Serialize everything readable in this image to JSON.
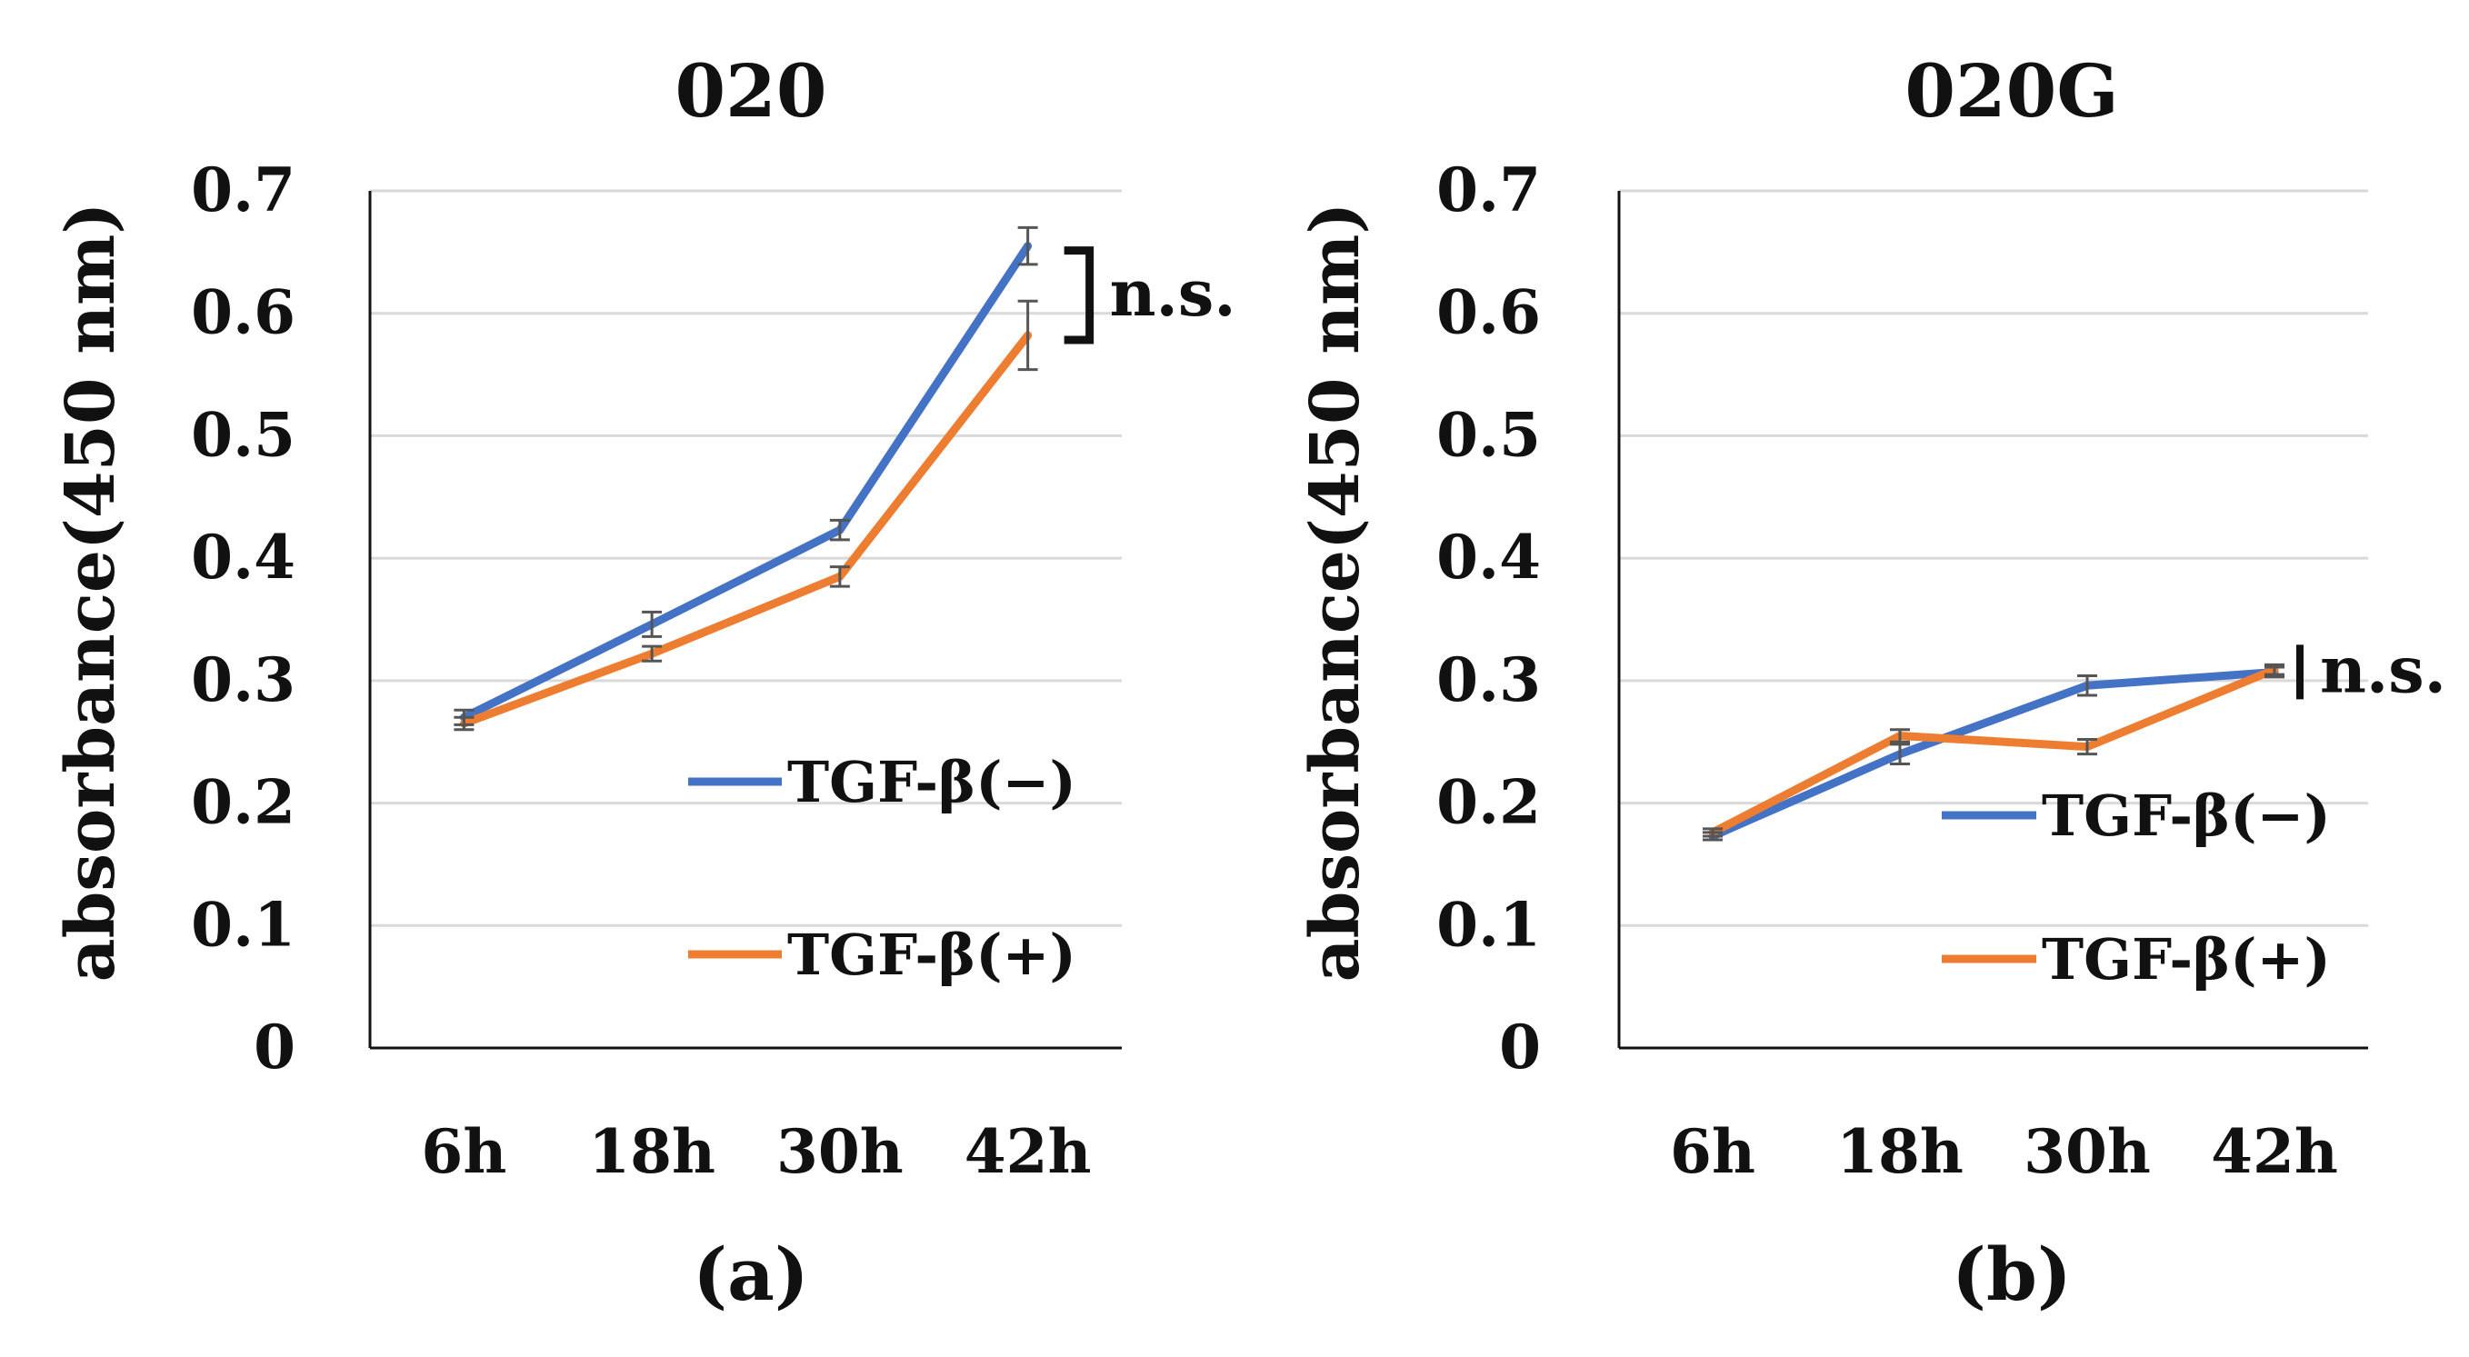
{
  "colors": {
    "tgf_minus": "#4472C4",
    "tgf_plus": "#ED7D31",
    "grid": "#D9D9D9",
    "axis": "#111111",
    "error_bar": "#555555"
  },
  "chart_data": [
    {
      "type": "line",
      "title": "020",
      "panel_label": "(a)",
      "ylabel": "absorbance(450 nm)",
      "xlabel": "",
      "categories": [
        "6h",
        "18h",
        "30h",
        "42h"
      ],
      "ylim": [
        0,
        0.7
      ],
      "yticks": [
        "0",
        "0.1",
        "0.2",
        "0.3",
        "0.4",
        "0.5",
        "0.6",
        "0.7"
      ],
      "grid": true,
      "legend_position": "right-middle",
      "series": [
        {
          "name": "TGF-β(−)",
          "values": [
            0.27,
            0.346,
            0.423,
            0.655
          ],
          "errors": [
            0.006,
            0.01,
            0.008,
            0.015
          ],
          "color": "#4472C4"
        },
        {
          "name": "TGF-β(+)",
          "values": [
            0.265,
            0.322,
            0.385,
            0.582
          ],
          "errors": [
            0.005,
            0.006,
            0.008,
            0.028
          ],
          "color": "#ED7D31"
        }
      ],
      "annotation": {
        "text": "n.s.",
        "style": "bracket",
        "at": "42h"
      }
    },
    {
      "type": "line",
      "title": "020G",
      "panel_label": "(b)",
      "ylabel": "absorbance(450 nm)",
      "xlabel": "",
      "categories": [
        "6h",
        "18h",
        "30h",
        "42h"
      ],
      "ylim": [
        0,
        0.7
      ],
      "yticks": [
        "0",
        "0.1",
        "0.2",
        "0.3",
        "0.4",
        "0.5",
        "0.6",
        "0.7"
      ],
      "grid": true,
      "legend_position": "right-middle",
      "series": [
        {
          "name": "TGF-β(−)",
          "values": [
            0.173,
            0.24,
            0.296,
            0.307
          ],
          "errors": [
            0.003,
            0.008,
            0.008,
            0.004
          ],
          "color": "#4472C4"
        },
        {
          "name": "TGF-β(+)",
          "values": [
            0.176,
            0.255,
            0.246,
            0.309
          ],
          "errors": [
            0.003,
            0.005,
            0.006,
            0.004
          ],
          "color": "#ED7D31"
        }
      ],
      "annotation": {
        "text": "n.s.",
        "style": "bar",
        "at": "42h"
      }
    }
  ]
}
